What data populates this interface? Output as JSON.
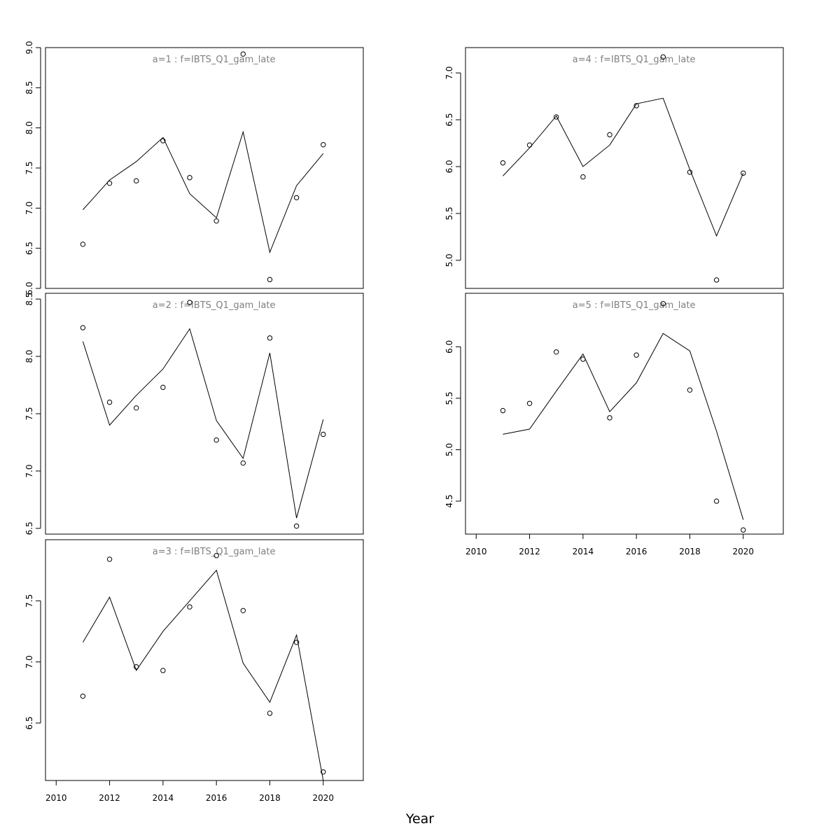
{
  "figure": {
    "xlabel": "Year"
  },
  "chart_data": [
    {
      "type": "line",
      "title": "a=1 : f=IBTS_Q1_gam_late",
      "x": [
        2011,
        2012,
        2013,
        2014,
        2015,
        2016,
        2017,
        2018,
        2019,
        2020
      ],
      "xlim": [
        2009.6,
        2021.5
      ],
      "ylim": [
        6.0,
        9.0
      ],
      "xticks": [
        2010,
        2012,
        2014,
        2016,
        2018,
        2020
      ],
      "yticks": [
        6.0,
        6.5,
        7.0,
        7.5,
        8.0,
        8.5,
        9.0
      ],
      "x_axis_shown": false,
      "series": [
        {
          "kind": "line",
          "values": [
            6.98,
            7.35,
            7.58,
            7.88,
            7.18,
            6.88,
            7.95,
            6.45,
            7.28,
            7.68
          ]
        },
        {
          "kind": "points",
          "values": [
            6.55,
            7.31,
            7.34,
            7.84,
            7.38,
            6.84,
            8.92,
            6.11,
            7.13,
            7.79
          ]
        }
      ]
    },
    {
      "type": "line",
      "title": "a=2 : f=IBTS_Q1_gam_late",
      "x": [
        2011,
        2012,
        2013,
        2014,
        2015,
        2016,
        2017,
        2018,
        2019,
        2020
      ],
      "xlim": [
        2009.6,
        2021.5
      ],
      "ylim": [
        6.45,
        8.55
      ],
      "xticks": [
        2010,
        2012,
        2014,
        2016,
        2018,
        2020
      ],
      "yticks": [
        6.5,
        7.0,
        7.5,
        8.0,
        8.5
      ],
      "x_axis_shown": false,
      "series": [
        {
          "kind": "line",
          "values": [
            8.13,
            7.4,
            7.66,
            7.89,
            8.24,
            7.44,
            7.11,
            8.03,
            6.59,
            7.45
          ]
        },
        {
          "kind": "points",
          "values": [
            8.25,
            7.6,
            7.55,
            7.73,
            8.47,
            7.27,
            7.07,
            8.16,
            6.52,
            7.32
          ]
        }
      ]
    },
    {
      "type": "line",
      "title": "a=3 : f=IBTS_Q1_gam_late",
      "x": [
        2011,
        2012,
        2013,
        2014,
        2015,
        2016,
        2017,
        2018,
        2019,
        2020
      ],
      "xlim": [
        2009.6,
        2021.5
      ],
      "ylim": [
        6.03,
        8.0
      ],
      "xticks": [
        2010,
        2012,
        2014,
        2016,
        2018,
        2020
      ],
      "yticks": [
        6.5,
        7.0,
        7.5
      ],
      "x_axis_shown": true,
      "series": [
        {
          "kind": "line",
          "values": [
            7.16,
            7.53,
            6.93,
            7.25,
            7.5,
            7.75,
            6.99,
            6.67,
            7.22,
            6.03
          ]
        },
        {
          "kind": "points",
          "values": [
            6.72,
            7.84,
            6.96,
            6.93,
            7.45,
            7.87,
            7.42,
            6.58,
            7.16,
            6.1
          ]
        }
      ]
    },
    {
      "type": "line",
      "title": "a=4 : f=IBTS_Q1_gam_late",
      "x": [
        2011,
        2012,
        2013,
        2014,
        2015,
        2016,
        2017,
        2018,
        2019,
        2020
      ],
      "xlim": [
        2009.6,
        2021.5
      ],
      "ylim": [
        4.7,
        7.27
      ],
      "xticks": [
        2010,
        2012,
        2014,
        2016,
        2018,
        2020
      ],
      "yticks": [
        5.0,
        5.5,
        6.0,
        6.5,
        7.0
      ],
      "x_axis_shown": false,
      "series": [
        {
          "kind": "line",
          "values": [
            5.9,
            6.2,
            6.54,
            6.0,
            6.23,
            6.67,
            6.73,
            5.97,
            5.26,
            5.93
          ]
        },
        {
          "kind": "points",
          "values": [
            6.04,
            6.23,
            6.53,
            5.89,
            6.34,
            6.65,
            7.17,
            5.94,
            4.79,
            5.93
          ]
        }
      ]
    },
    {
      "type": "line",
      "title": "a=5 : f=IBTS_Q1_gam_late",
      "x": [
        2011,
        2012,
        2013,
        2014,
        2015,
        2016,
        2017,
        2018,
        2019,
        2020
      ],
      "xlim": [
        2009.6,
        2021.5
      ],
      "ylim": [
        4.18,
        6.52
      ],
      "xticks": [
        2010,
        2012,
        2014,
        2016,
        2018,
        2020
      ],
      "yticks": [
        4.5,
        5.0,
        5.5,
        6.0
      ],
      "x_axis_shown": true,
      "series": [
        {
          "kind": "line",
          "values": [
            5.15,
            5.2,
            5.57,
            5.93,
            5.37,
            5.65,
            6.13,
            5.96,
            5.18,
            4.32
          ]
        },
        {
          "kind": "points",
          "values": [
            5.38,
            5.45,
            5.95,
            5.88,
            5.31,
            5.92,
            6.42,
            5.58,
            4.5,
            4.22
          ]
        }
      ]
    }
  ]
}
